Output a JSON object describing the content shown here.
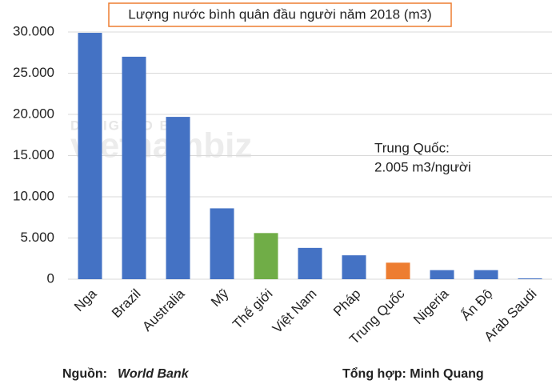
{
  "chart_data": {
    "type": "bar",
    "title": "Lượng nước bình quân đầu người năm 2018 (m3)",
    "categories": [
      "Nga",
      "Brazil",
      "Australia",
      "Mỹ",
      "Thế giới",
      "Việt Nam",
      "Pháp",
      "Trung Quốc",
      "Nigeria",
      "Ấn Độ",
      "Arab Saudi"
    ],
    "values": [
      29900,
      27000,
      19700,
      8600,
      5600,
      3800,
      2900,
      2005,
      1100,
      1100,
      100
    ],
    "colors": [
      "#4472c4",
      "#4472c4",
      "#4472c4",
      "#4472c4",
      "#70ad47",
      "#4472c4",
      "#4472c4",
      "#ed7d31",
      "#4472c4",
      "#4472c4",
      "#4472c4"
    ],
    "ylim": [
      0,
      30000
    ],
    "yticks": [
      0,
      {
        "value": 5000,
        "label": "5.000"
      },
      {
        "value": 10000,
        "label": "10.000"
      },
      {
        "value": 15000,
        "label": "15.000"
      },
      {
        "value": 20000,
        "label": "20.000"
      },
      {
        "value": 25000,
        "label": "25.000"
      },
      {
        "value": 30000,
        "label": "30.000"
      }
    ],
    "grid": true,
    "annotation": [
      "Trung Quốc:",
      "2.005 m3/người"
    ],
    "watermark": [
      "DESIGNED BY",
      "vietnambiz"
    ],
    "source_label": "Nguồn:",
    "source": "World Bank",
    "compiled_by": "Tổng hợp: Minh Quang"
  }
}
